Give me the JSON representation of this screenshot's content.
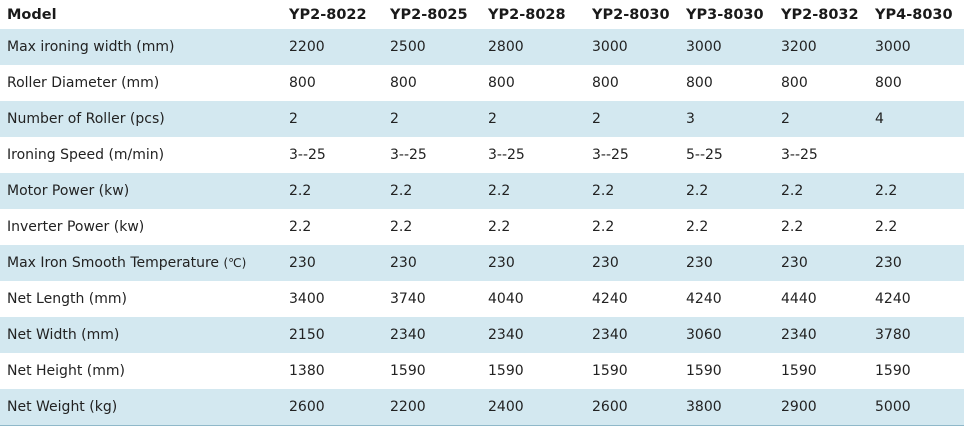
{
  "table": {
    "header": [
      "Model",
      "YP2-8022",
      "YP2-8025",
      "YP2-8028",
      "YP2-8030",
      "YP3-8030",
      "YP2-8032",
      "YP4-8030"
    ],
    "rows": [
      {
        "label": "Max ironing width (mm)",
        "values": [
          "2200",
          "2500",
          "2800",
          "3000",
          "3000",
          "3200",
          "3000"
        ]
      },
      {
        "label": "Roller Diameter (mm)",
        "values": [
          "800",
          "800",
          "800",
          "800",
          "800",
          "800",
          "800"
        ]
      },
      {
        "label": "Number of Roller (pcs)",
        "values": [
          "2",
          "2",
          "2",
          "2",
          "3",
          "2",
          "4"
        ]
      },
      {
        "label": "Ironing Speed (m/min)",
        "values": [
          "3--25",
          "3--25",
          "3--25",
          "3--25",
          "5--25",
          "3--25",
          ""
        ]
      },
      {
        "label": "Motor Power (kw)",
        "values": [
          "2.2",
          "2.2",
          "2.2",
          "2.2",
          "2.2",
          "2.2",
          "2.2"
        ]
      },
      {
        "label": "Inverter Power (kw)",
        "values": [
          "2.2",
          "2.2",
          "2.2",
          "2.2",
          "2.2",
          "2.2",
          "2.2"
        ]
      },
      {
        "label": "Max Iron Smooth Temperature",
        "unit": "(℃)",
        "values": [
          "230",
          "230",
          "230",
          "230",
          "230",
          "230",
          "230"
        ]
      },
      {
        "label": "Net Length (mm)",
        "values": [
          "3400",
          "3740",
          "4040",
          "4240",
          "4240",
          "4440",
          "4240"
        ]
      },
      {
        "label": "Net Width (mm)",
        "values": [
          "2150",
          "2340",
          "2340",
          "2340",
          "3060",
          "2340",
          "3780"
        ]
      },
      {
        "label": "Net Height (mm)",
        "values": [
          "1380",
          "1590",
          "1590",
          "1590",
          "1590",
          "1590",
          "1590"
        ]
      },
      {
        "label": "Net Weight (kg)",
        "values": [
          "2600",
          "2200",
          "2400",
          "2600",
          "3800",
          "2900",
          "5000"
        ]
      }
    ]
  },
  "colors": {
    "stripe": "#d3e8f0",
    "background": "#ffffff",
    "text": "#222222"
  }
}
